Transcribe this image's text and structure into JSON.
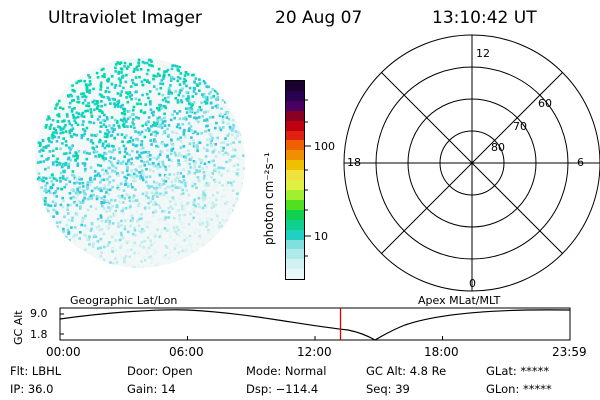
{
  "header": {
    "instrument": "Ultraviolet Imager",
    "date": "20 Aug 07",
    "time": "13:10:42 UT"
  },
  "colorbar": {
    "unit_label": "photon cm⁻²s⁻¹",
    "ticks": [
      "100",
      "10"
    ],
    "colors": [
      "#1a0030",
      "#2a0050",
      "#4a0060",
      "#8a0020",
      "#c00010",
      "#e02010",
      "#f06000",
      "#f09000",
      "#f0c000",
      "#f0e040",
      "#e0f040",
      "#a0f030",
      "#50e020",
      "#10d050",
      "#10d090",
      "#20d0c0",
      "#80e0e0",
      "#b0ebeb",
      "#d0f2f2",
      "#e8f7f7"
    ]
  },
  "image_panel": {
    "label": "Geographic Lat/Lon",
    "accent_colors": [
      "#00d8a8",
      "#30c8d8",
      "#80e0e8",
      "#c0ecec",
      "#e4f4f4"
    ]
  },
  "polar_plot": {
    "label": "Apex MLat/MLT",
    "mlt_labels": [
      "12",
      "18",
      "6",
      "0"
    ],
    "lat_labels": [
      "60",
      "70",
      "80"
    ]
  },
  "timeline": {
    "axis_label": "GC Alt",
    "y_ticks": [
      "9.0",
      "1.8"
    ],
    "x_ticks": [
      "00:00",
      "06:00",
      "12:00",
      "18:00",
      "23:59"
    ],
    "current_time_fraction": 0.55,
    "marker_color": "#e00000"
  },
  "status": {
    "flt": "Flt: LBHL",
    "ip": "IP: 36.0",
    "door": "Door: Open",
    "gain": "Gain: 14",
    "mode": "Mode: Normal",
    "dsp": "Dsp: −114.4",
    "gc_alt": "GC Alt: 4.8 Re",
    "seq": "Seq: 39",
    "glat": "GLat: *****",
    "glon": "GLon: *****"
  }
}
